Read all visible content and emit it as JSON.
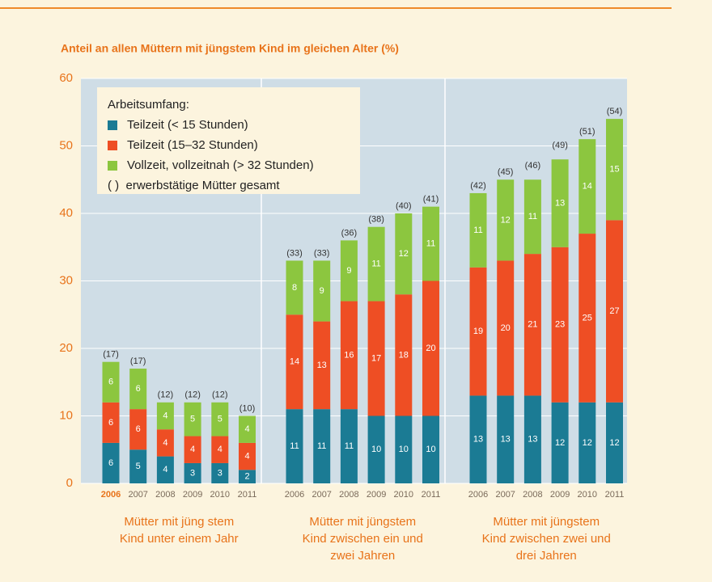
{
  "chart_data": {
    "type": "stacked-bar",
    "title": "Anteil an allen Müttern mit jüngstem Kind im gleichen Alter (%)",
    "legend_title": "Arbeitsumfang:",
    "total_note": "( )  erwerbstätige Mütter gesamt",
    "legend": "top-left",
    "grid": true,
    "ylim": [
      0,
      60
    ],
    "yticks": [
      0,
      10,
      20,
      30,
      40,
      50,
      60
    ],
    "series": [
      {
        "name": "Teilzeit (< 15 Stunden)",
        "color": "#1b7b94"
      },
      {
        "name": "Teilzeit (15–32 Stunden)",
        "color": "#ee4e24"
      },
      {
        "name": "Vollzeit, vollzeitnah (> 32 Stunden)",
        "color": "#8cc63f"
      }
    ],
    "groups": [
      {
        "label": [
          "Mütter mit jüng stem",
          "Kind unter einem Jahr"
        ],
        "categories": [
          "2006",
          "2007",
          "2008",
          "2009",
          "2010",
          "2011"
        ],
        "values": [
          [
            6,
            5,
            4,
            3,
            3,
            2
          ],
          [
            6,
            6,
            4,
            4,
            4,
            4
          ],
          [
            6,
            6,
            4,
            5,
            5,
            4
          ]
        ],
        "totals": [
          17,
          17,
          12,
          12,
          12,
          10
        ],
        "total_labels": [
          "(17)",
          "(17)",
          "(12)",
          "(12)",
          "(12)",
          "(10)"
        ]
      },
      {
        "label": [
          "Mütter mit jüngstem",
          "Kind zwischen ein und",
          "zwei Jahren"
        ],
        "categories": [
          "2006",
          "2007",
          "2008",
          "2009",
          "2010",
          "2011"
        ],
        "values": [
          [
            11,
            11,
            11,
            10,
            10,
            10
          ],
          [
            14,
            13,
            16,
            17,
            18,
            20
          ],
          [
            8,
            9,
            9,
            11,
            12,
            11
          ]
        ],
        "totals": [
          33,
          33,
          36,
          38,
          40,
          41
        ],
        "total_labels": [
          "(33)",
          "(33)",
          "(36)",
          "(38)",
          "(40)",
          "(41)"
        ]
      },
      {
        "label": [
          "Mütter mit jüngstem",
          "Kind zwischen zwei und",
          "drei Jahren"
        ],
        "categories": [
          "2006",
          "2007",
          "2008",
          "2009",
          "2010",
          "2011"
        ],
        "values": [
          [
            13,
            13,
            13,
            12,
            12,
            12
          ],
          [
            19,
            20,
            21,
            23,
            25,
            27
          ],
          [
            11,
            12,
            11,
            13,
            14,
            15
          ]
        ],
        "totals": [
          42,
          45,
          46,
          49,
          51,
          54
        ],
        "total_labels": [
          "(42)",
          "(45)",
          "(46)",
          "(49)",
          "(51)",
          "(54)"
        ]
      }
    ]
  }
}
